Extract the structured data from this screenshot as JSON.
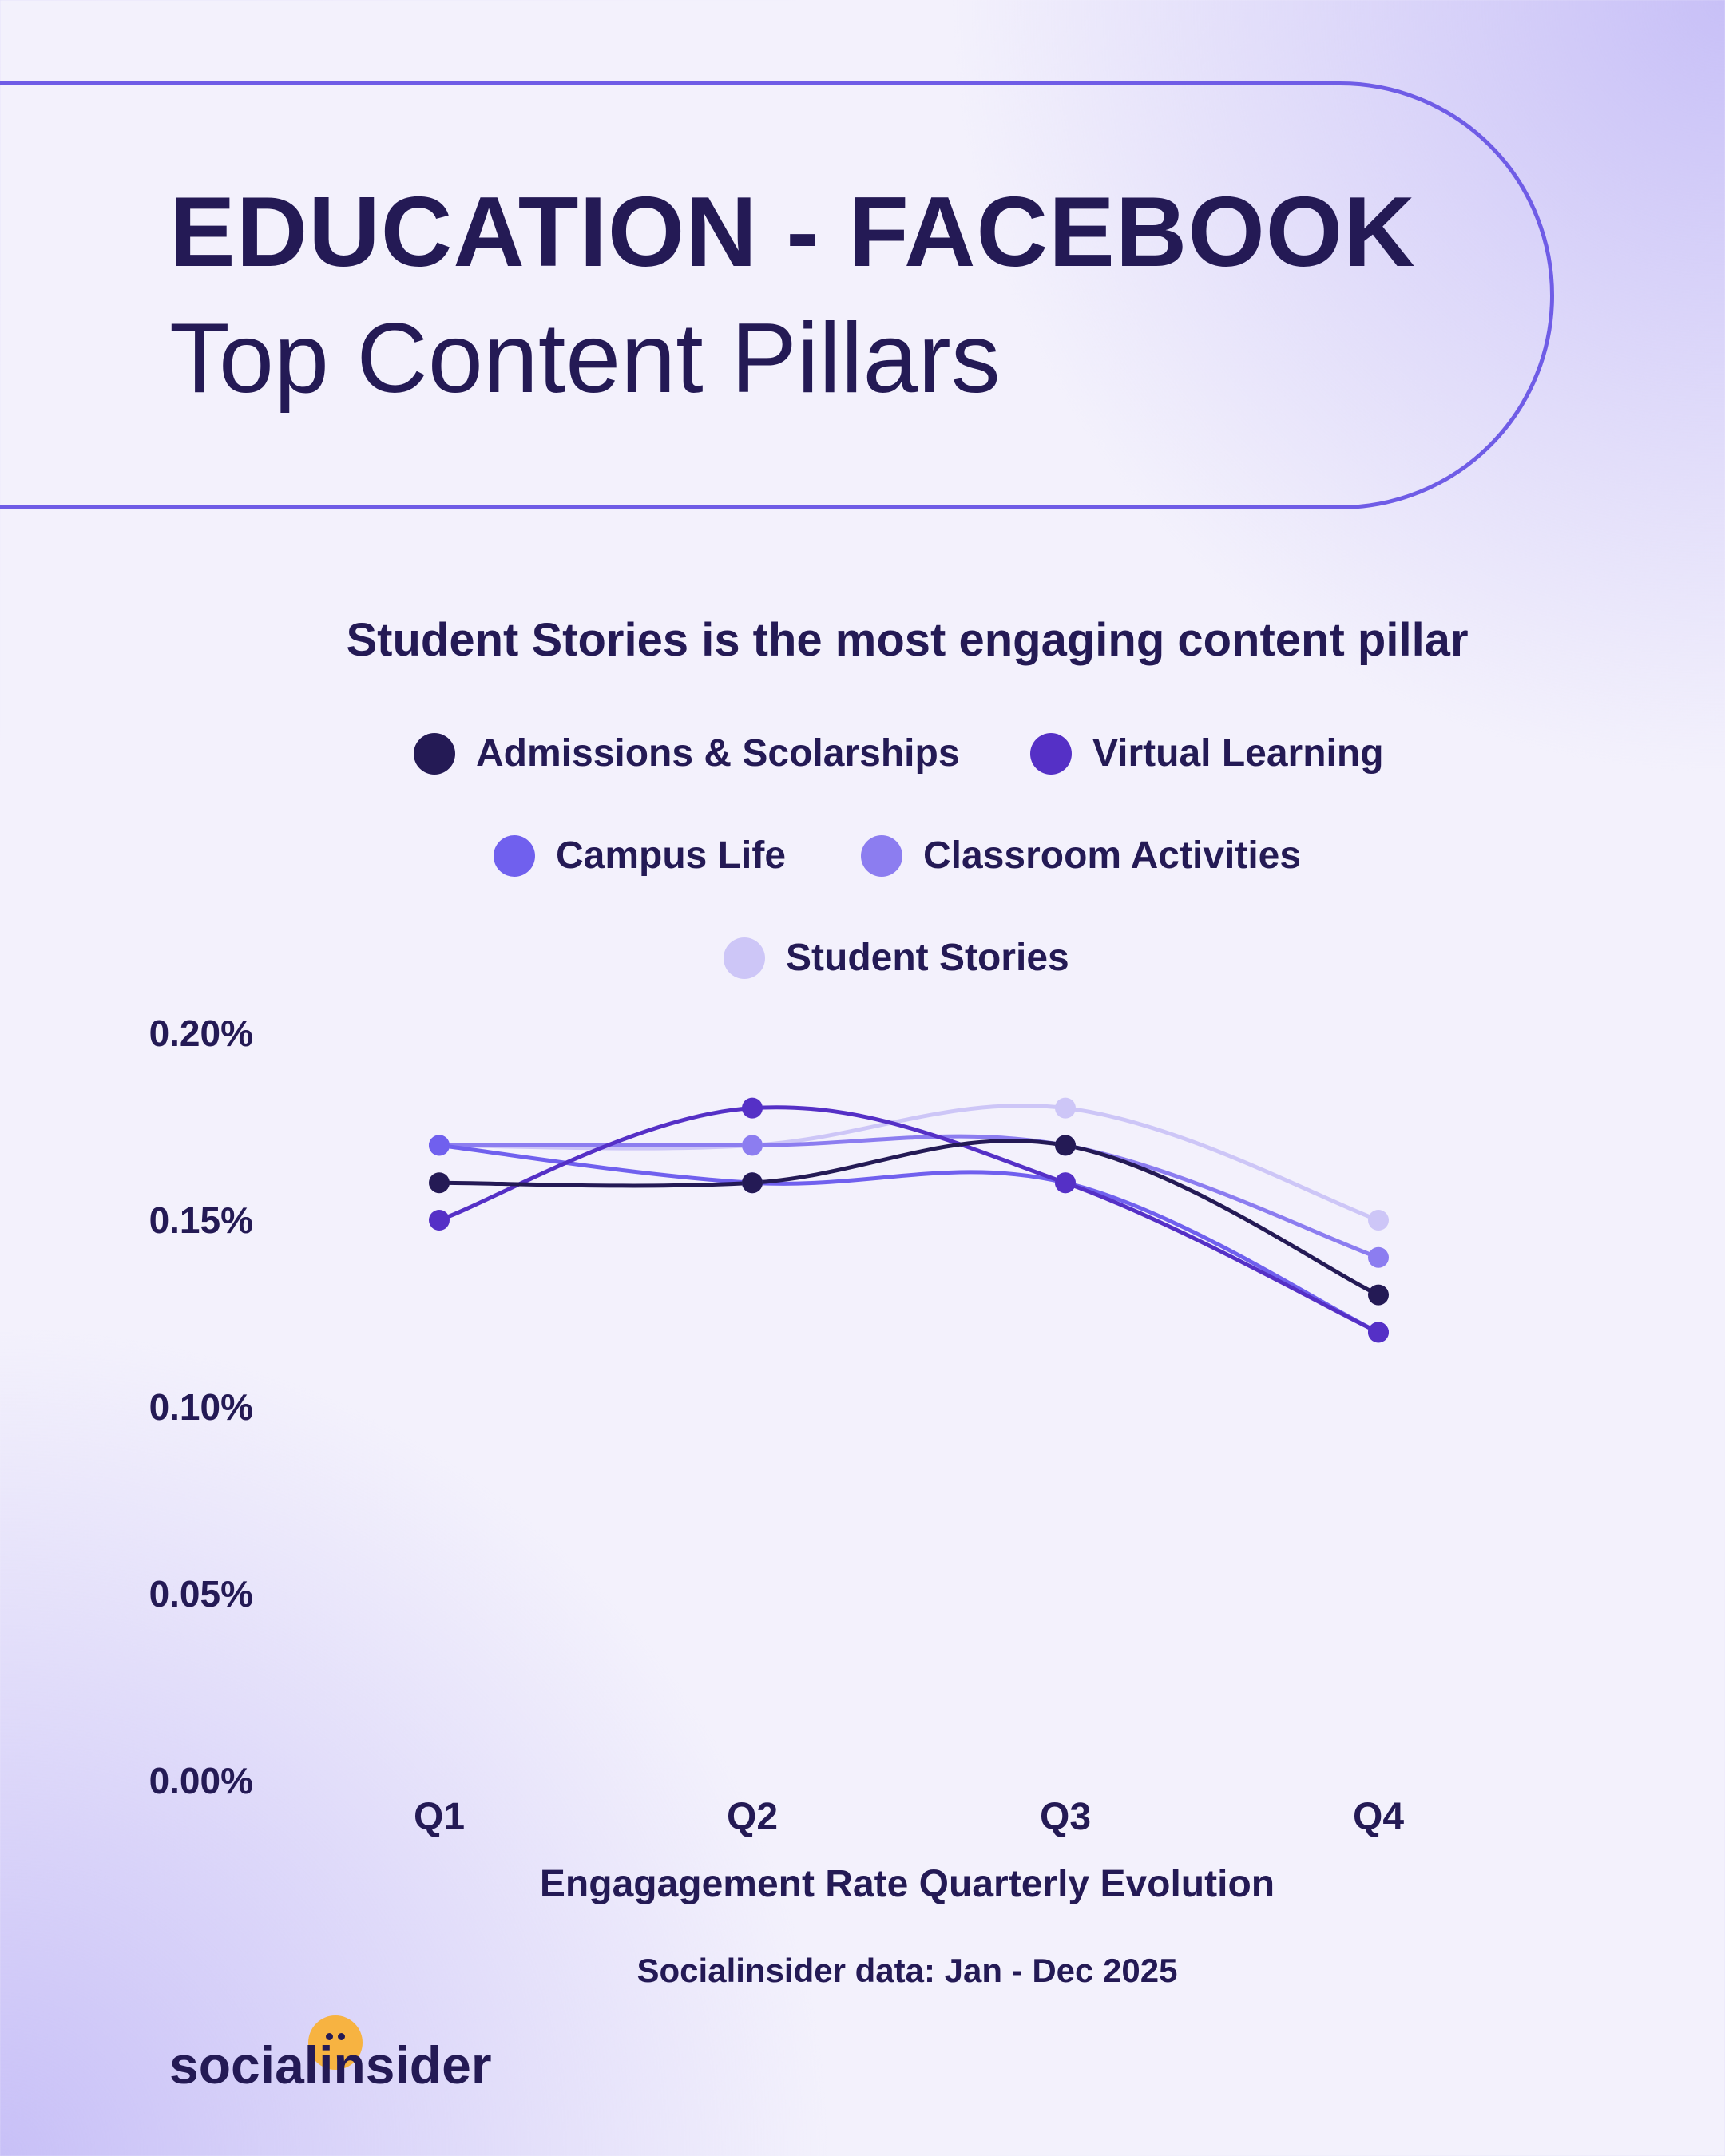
{
  "header": {
    "title": "EDUCATION - FACEBOOK",
    "subtitle": "Top Content Pillars"
  },
  "chart_data": {
    "type": "line",
    "title": "Student Stories is the most engaging content pillar",
    "categories": [
      "Q1",
      "Q2",
      "Q3",
      "Q4"
    ],
    "xlabel": "Engagagement Rate Quarterly Evolution",
    "ylabel": "",
    "ylim": [
      0,
      0.2
    ],
    "yticks": [
      "0.00%",
      "0.05%",
      "0.10%",
      "0.15%",
      "0.20%"
    ],
    "grid": false,
    "legend_position": "top",
    "series": [
      {
        "name": "Admissions & Scolarships",
        "color": "#241a55",
        "values": [
          0.16,
          0.16,
          0.17,
          0.13
        ]
      },
      {
        "name": "Virtual Learning",
        "color": "#5530c6",
        "values": [
          0.15,
          0.18,
          0.16,
          0.12
        ]
      },
      {
        "name": "Campus Life",
        "color": "#7060ee",
        "values": [
          0.17,
          0.16,
          0.16,
          0.12
        ]
      },
      {
        "name": "Classroom Activities",
        "color": "#8c7df0",
        "values": [
          0.17,
          0.17,
          0.17,
          0.14
        ]
      },
      {
        "name": "Student Stories",
        "color": "#cdc6f7",
        "values": [
          0.17,
          0.17,
          0.18,
          0.15
        ]
      }
    ]
  },
  "source": "Socialinsider data: Jan - Dec 2025",
  "brand": {
    "logo_text": "socialinsider",
    "badge_color": "#f7b341"
  }
}
